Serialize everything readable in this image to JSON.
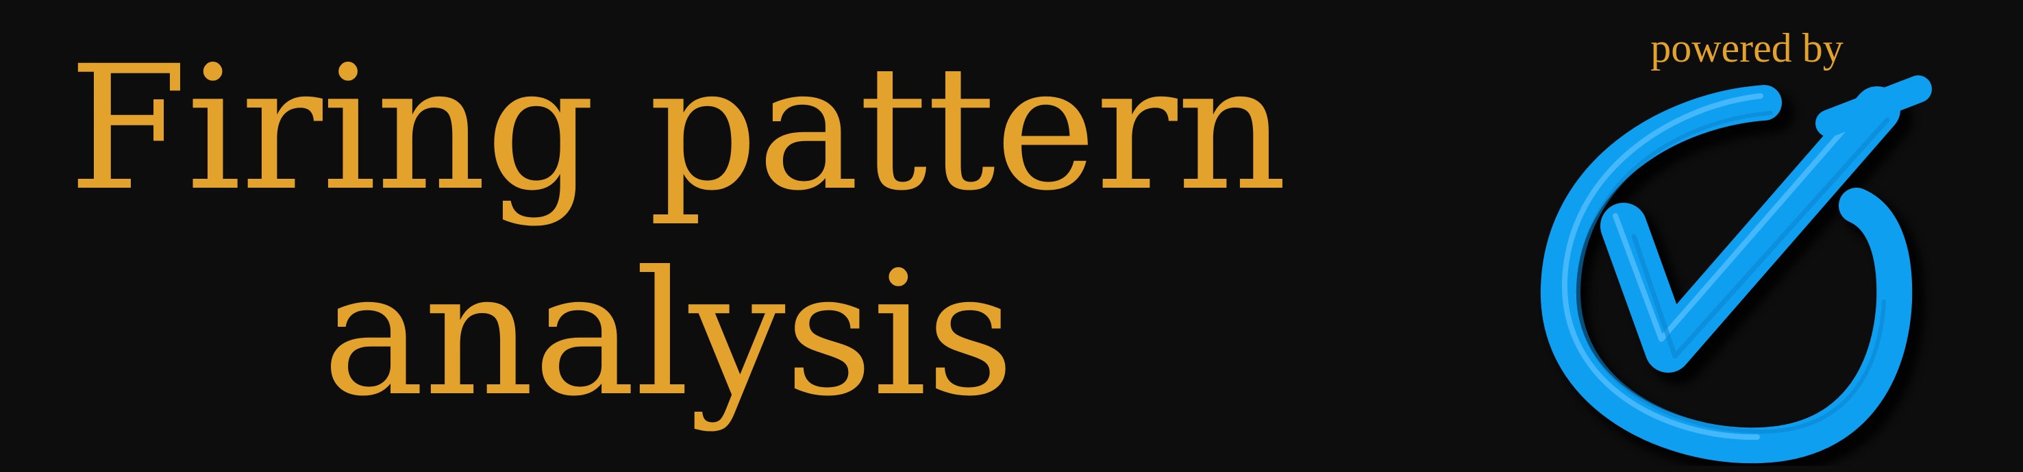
{
  "banner": {
    "title_line1": "Firing pattern",
    "title_line2": "analysis",
    "powered_by": "powered by",
    "logo_icon": "blue-brush-checkmark-circle-icon"
  },
  "colors": {
    "background": "#0d0d0d",
    "text_accent": "#e3a22c",
    "logo_blue": "#0f9ff0",
    "logo_blue_light": "#5cc2ff",
    "logo_shadow": "#000000"
  }
}
